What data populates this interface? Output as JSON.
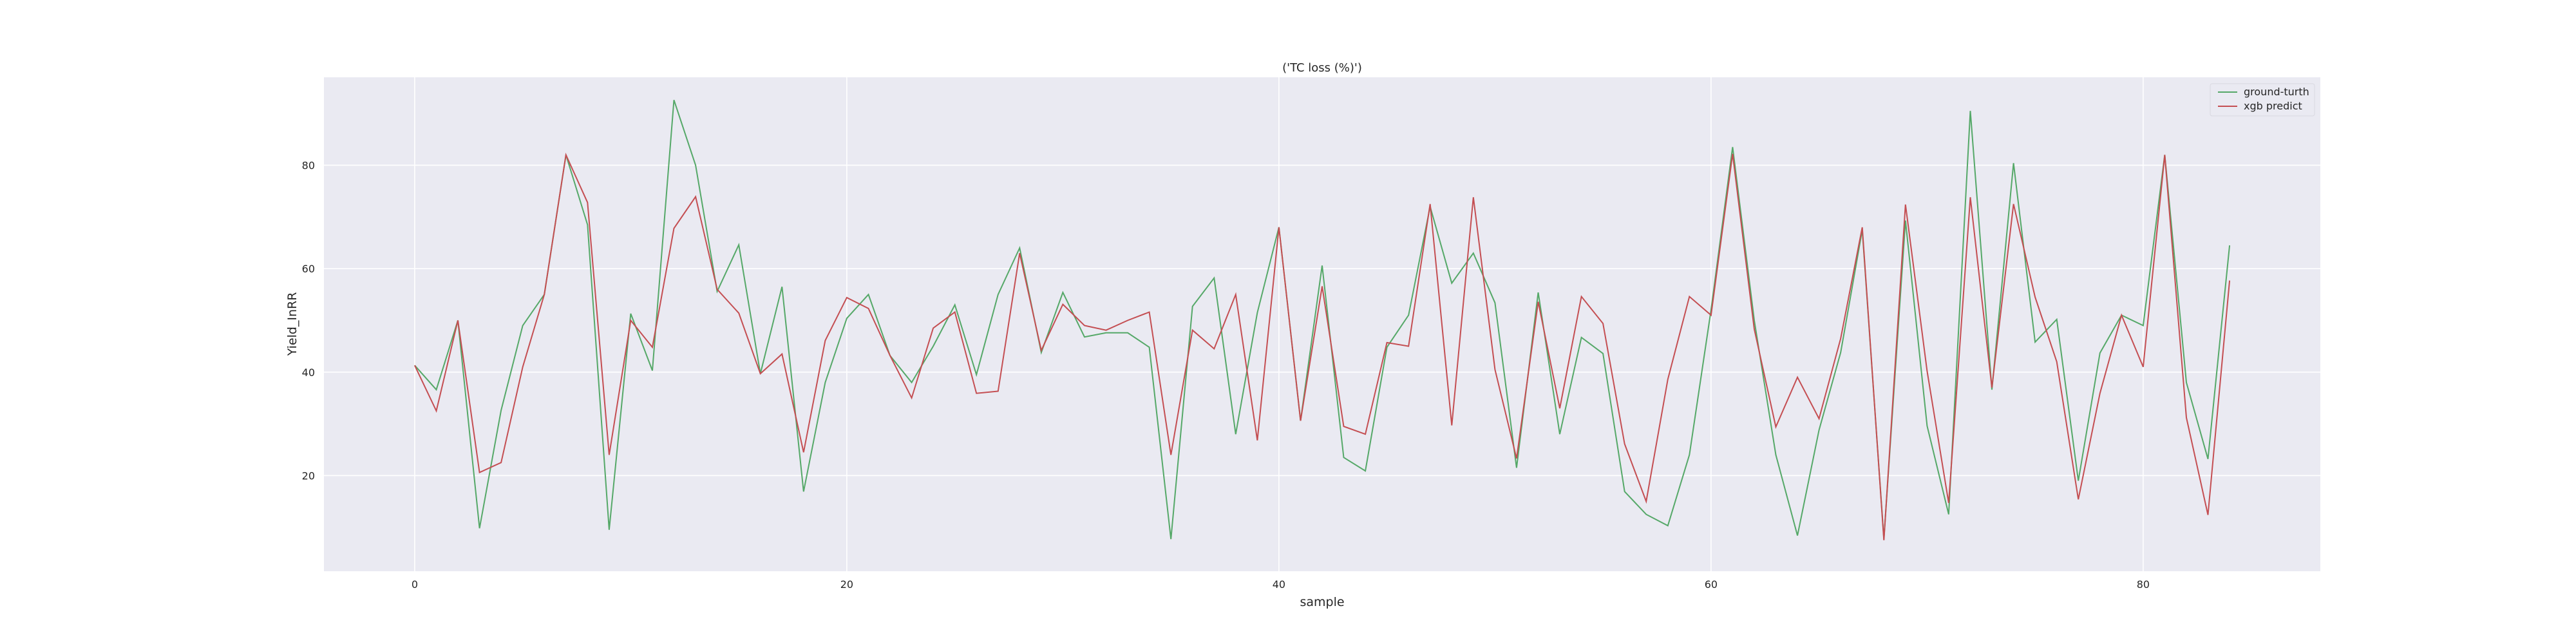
{
  "chart_data": {
    "type": "line",
    "title": "('TC loss (%)')",
    "xlabel": "sample",
    "ylabel": "Yield_InRR",
    "xlim": [
      -4.2,
      88.2
    ],
    "ylim": [
      1.5,
      97
    ],
    "xticks": [
      0,
      20,
      40,
      60,
      80
    ],
    "yticks": [
      20,
      40,
      60,
      80
    ],
    "grid": true,
    "legend_position": "top-right",
    "x": [
      0,
      1,
      2,
      3,
      4,
      5,
      6,
      7,
      8,
      9,
      10,
      11,
      12,
      13,
      14,
      15,
      16,
      17,
      18,
      19,
      20,
      21,
      22,
      23,
      24,
      25,
      26,
      27,
      28,
      29,
      30,
      31,
      32,
      33,
      34,
      35,
      36,
      37,
      38,
      39,
      40,
      41,
      42,
      43,
      44,
      45,
      46,
      47,
      48,
      49,
      50,
      51,
      52,
      53,
      54,
      55,
      56,
      57,
      58,
      59,
      60,
      61,
      62,
      63,
      64,
      65,
      66,
      67,
      68,
      69,
      70,
      71,
      72,
      73,
      74,
      75,
      76,
      77,
      78,
      79,
      80,
      81,
      82,
      83,
      84
    ],
    "series": [
      {
        "name": "ground-turth",
        "color": "#55a868",
        "values": [
          41.3,
          36.6,
          50.0,
          9.8,
          32.6,
          49.0,
          55.0,
          82.0,
          68.5,
          9.5,
          51.3,
          40.3,
          92.6,
          80.0,
          55.6,
          64.6,
          39.7,
          56.5,
          16.9,
          38.0,
          50.4,
          55.0,
          43.2,
          38.0,
          45.0,
          53.0,
          39.5,
          55.0,
          64.0,
          43.8,
          55.4,
          46.8,
          47.6,
          47.6,
          44.8,
          7.7,
          52.7,
          58.2,
          28.0,
          51.5,
          68.0,
          30.6,
          60.6,
          23.5,
          20.9,
          44.8,
          51.0,
          72.0,
          57.2,
          63.0,
          53.4,
          21.5,
          55.4,
          28.0,
          46.7,
          43.6,
          16.9,
          12.5,
          10.3,
          24.0,
          52.0,
          83.5,
          50.0,
          24.0,
          8.4,
          28.8,
          43.8,
          67.5,
          7.8,
          69.3,
          29.6,
          12.5,
          90.5,
          36.6,
          80.4,
          45.8,
          50.2,
          19.0,
          43.7,
          51.0,
          49.0,
          82.0,
          38.0,
          23.2,
          64.5
        ]
      },
      {
        "name": "xgb predict",
        "color": "#c44e52",
        "values": [
          41.3,
          32.5,
          50.0,
          20.6,
          22.5,
          41.0,
          55.0,
          82.0,
          72.8,
          24.0,
          50.0,
          44.8,
          67.8,
          73.9,
          56.0,
          51.4,
          39.7,
          43.5,
          24.5,
          46.1,
          54.4,
          52.3,
          43.2,
          35.0,
          48.5,
          51.6,
          35.9,
          36.3,
          63.0,
          44.2,
          53.1,
          49.0,
          48.1,
          50.0,
          51.6,
          24.0,
          48.1,
          44.5,
          55.0,
          26.8,
          68.0,
          30.6,
          56.6,
          29.5,
          28.0,
          45.7,
          45.0,
          72.5,
          29.7,
          73.8,
          40.5,
          23.3,
          53.6,
          33.0,
          54.6,
          49.4,
          26.1,
          15.0,
          38.6,
          54.6,
          51.0,
          82.2,
          48.3,
          29.4,
          39.0,
          31.0,
          46.5,
          68.0,
          7.5,
          72.4,
          40.2,
          14.7,
          73.8,
          37.0,
          72.5,
          54.5,
          42.0,
          15.4,
          35.9,
          51.0,
          41.0,
          82.0,
          31.2,
          12.4,
          57.7
        ]
      }
    ]
  }
}
